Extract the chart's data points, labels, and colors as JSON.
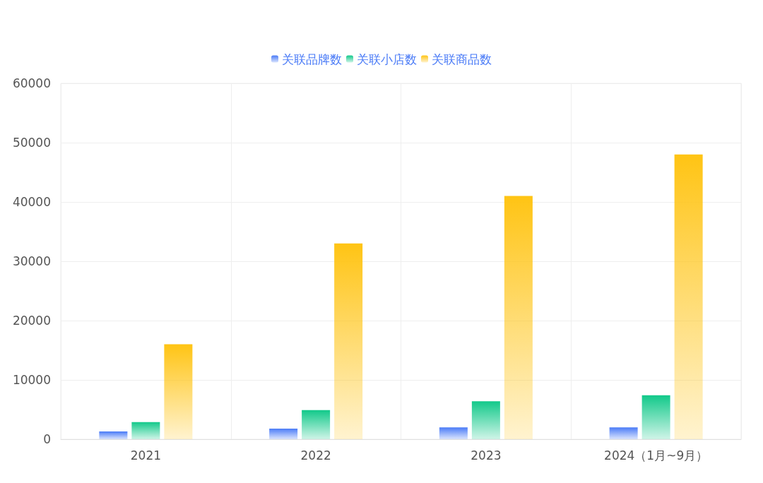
{
  "chart_data": {
    "type": "bar",
    "categories": [
      "2021",
      "2022",
      "2023",
      "2024（1月~9月）"
    ],
    "series": [
      {
        "name": "关联品牌数",
        "color": "#4a7bf7",
        "values": [
          1300,
          1800,
          2000,
          2000
        ]
      },
      {
        "name": "关联小店数",
        "color": "#12c98a",
        "values": [
          2900,
          4900,
          6400,
          7400
        ]
      },
      {
        "name": "关联商品数",
        "color": "#ffc414",
        "values": [
          16000,
          33000,
          41000,
          48000
        ]
      }
    ],
    "ylim": [
      0,
      60000
    ],
    "yticks": [
      0,
      10000,
      20000,
      30000,
      40000,
      50000,
      60000
    ],
    "grid": true,
    "legend": "top"
  }
}
